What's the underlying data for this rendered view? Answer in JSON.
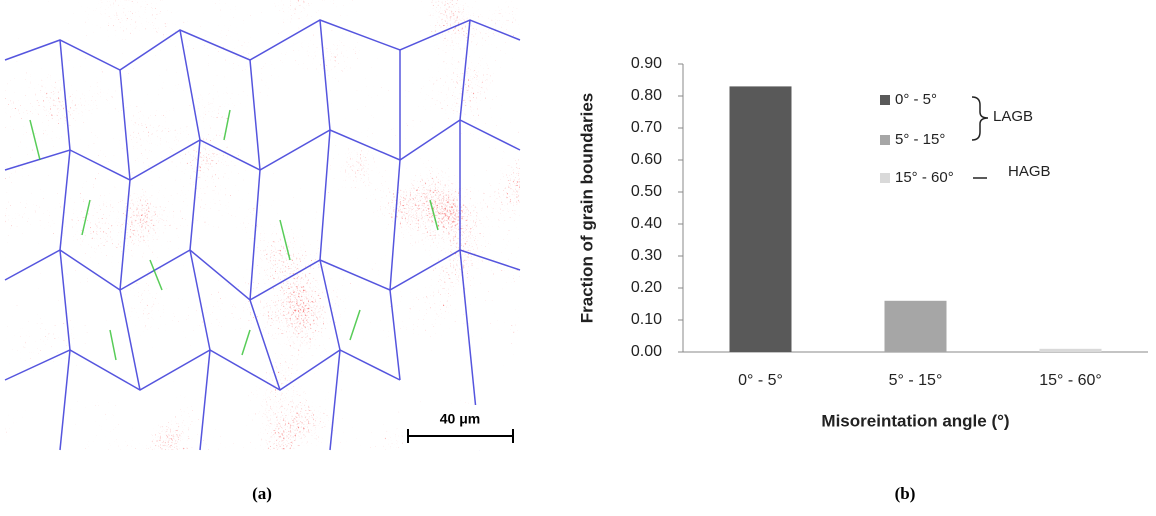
{
  "figure": {
    "scale_bar": "40 μm",
    "panel_labels": [
      "(a)",
      "(b)"
    ]
  },
  "chart_data": {
    "type": "bar",
    "categories": [
      "0° - 5°",
      "5° - 15°",
      "15° - 60°"
    ],
    "values": [
      0.83,
      0.16,
      0.01
    ],
    "colors": [
      "#595959",
      "#a6a6a6",
      "#d9d9d9"
    ],
    "x_label": "Misoreintation angle (°)",
    "y_label": "Fraction of grain boundaries",
    "ylim": [
      0,
      0.9
    ],
    "yticks": [
      {
        "value": 0,
        "label": "0.00"
      },
      {
        "value": 0.1,
        "label": "0.10"
      },
      {
        "value": 0.2,
        "label": "0.20"
      },
      {
        "value": 0.3,
        "label": "0.30"
      },
      {
        "value": 0.4,
        "label": "0.40"
      },
      {
        "value": 0.5,
        "label": "0.50"
      },
      {
        "value": 0.6,
        "label": "0.60"
      },
      {
        "value": 0.7,
        "label": "0.70"
      },
      {
        "value": 0.8,
        "label": "0.80"
      },
      {
        "value": 0.9,
        "label": "0.90"
      }
    ],
    "annotations": [
      "LAGB",
      "HAGB"
    ]
  }
}
